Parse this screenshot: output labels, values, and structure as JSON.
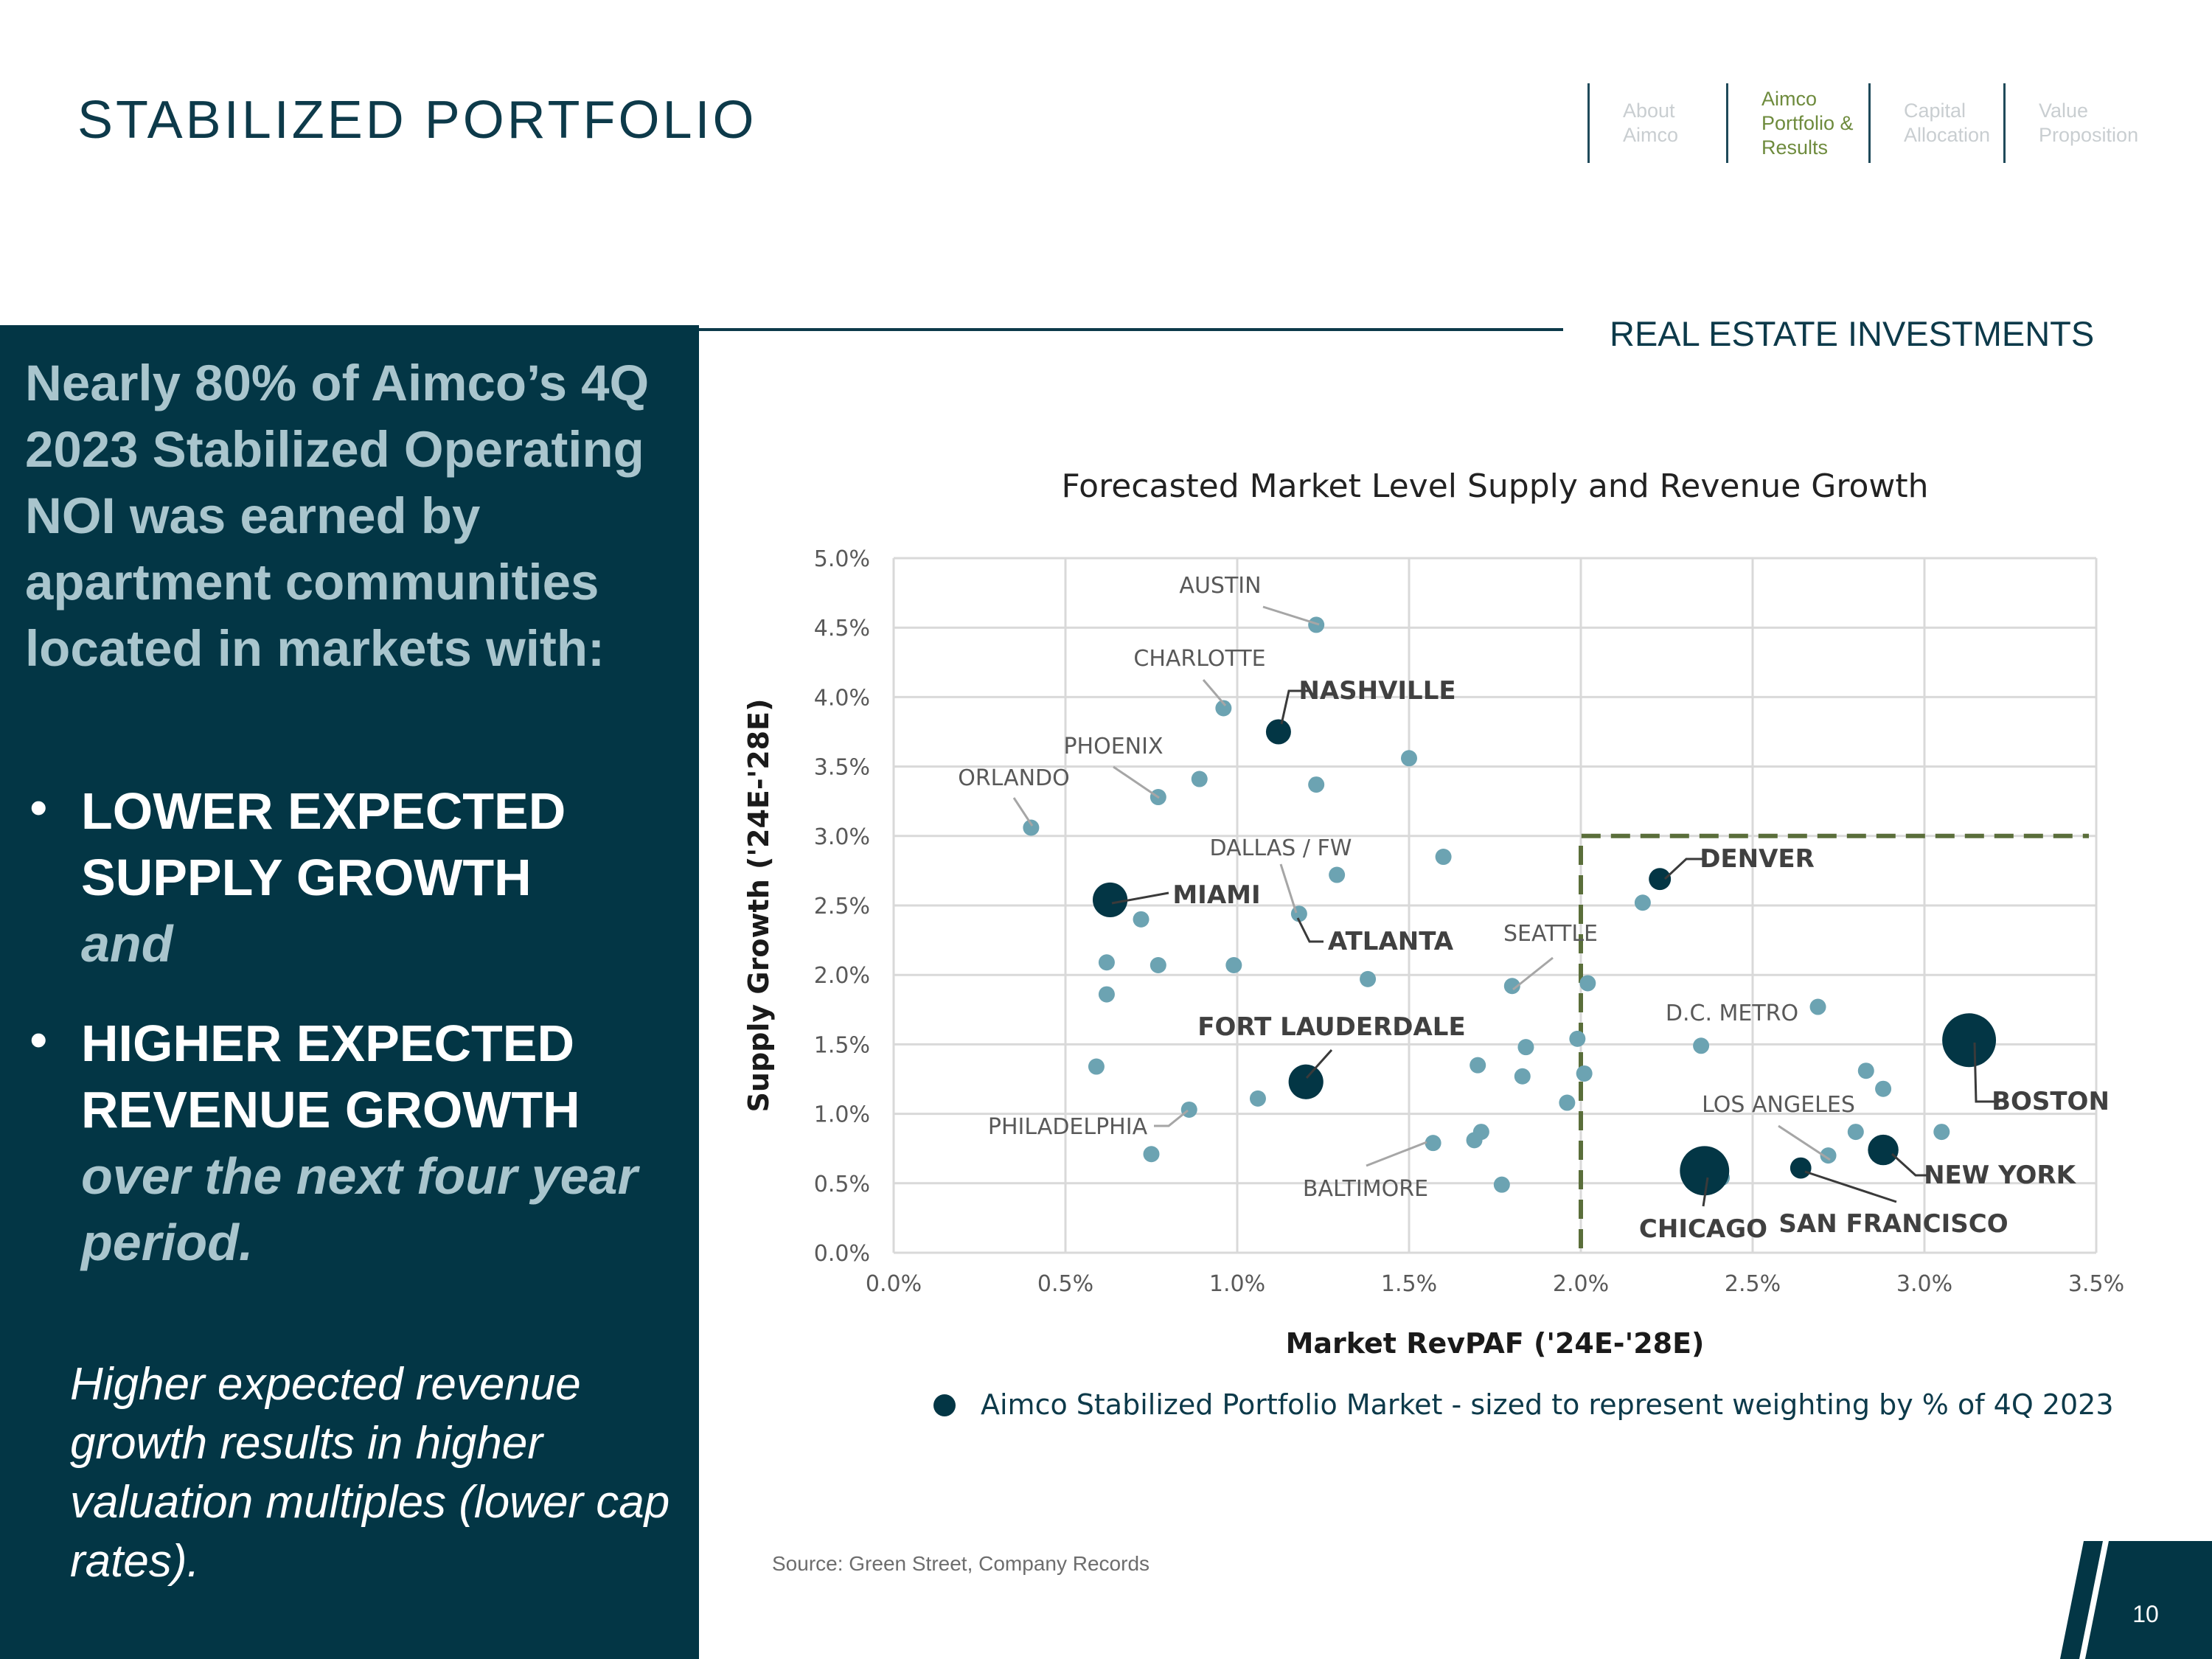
{
  "page": {
    "title": "STABILIZED PORTFOLIO",
    "section_label": "REAL ESTATE INVESTMENTS",
    "page_number": "10",
    "source": "Source: Green Street, Company Records"
  },
  "nav": {
    "about": "About Aimco",
    "portfolio": "Aimco Portfolio & Results",
    "capital": "Capital Allocation",
    "value": "Value Proposition"
  },
  "left_panel": {
    "heading": "Nearly 80% of Aimco’s 4Q 2023 Stabilized Operating NOI was earned by apartment communities located in markets with:",
    "bullet1_bold": "LOWER EXPECTED SUPPLY GROWTH",
    "bullet1_italic": "and",
    "bullet2_bold": "HIGHER EXPECTED REVENUE GROWTH",
    "bullet2_italic": "over the next four year period.",
    "bullet_glyph": "•",
    "note": "Higher expected revenue growth results in higher valuation multiples (lower cap rates)."
  },
  "colors": {
    "navy": "#033645",
    "market_point": "#6ca3b2",
    "aimco_point": "#033645",
    "threshold_line": "#5a6e3a",
    "nav_active": "#6e8b3d"
  },
  "chart_data": {
    "type": "scatter",
    "title": "Forecasted Market Level Supply and Revenue Growth",
    "xlabel": "Market RevPAF ('24E-'28E)",
    "ylabel": "Supply Growth ('24E-'28E)",
    "xlim": [
      0,
      3.5
    ],
    "ylim": [
      0,
      5.0
    ],
    "x_ticks": [
      "0.0%",
      "0.5%",
      "1.0%",
      "1.5%",
      "2.0%",
      "2.5%",
      "3.0%",
      "3.5%"
    ],
    "y_ticks": [
      "0.0%",
      "0.5%",
      "1.0%",
      "1.5%",
      "2.0%",
      "2.5%",
      "3.0%",
      "3.5%",
      "4.0%",
      "4.5%",
      "5.0%"
    ],
    "grid": true,
    "legend_label": "Aimco Stabilized Portfolio Market - sized to represent weighting by % of 4Q 2023",
    "threshold": {
      "x": 2.0,
      "y": 3.0
    },
    "series": [
      {
        "kind": "market",
        "points": [
          {
            "x": 1.23,
            "y": 4.52,
            "label": "AUSTIN"
          },
          {
            "x": 0.96,
            "y": 3.92,
            "label": "CHARLOTTE"
          },
          {
            "x": 0.77,
            "y": 3.28,
            "label": "PHOENIX"
          },
          {
            "x": 0.4,
            "y": 3.06,
            "label": "ORLANDO"
          },
          {
            "x": 1.18,
            "y": 2.44,
            "label": "DALLAS / FW"
          },
          {
            "x": 1.8,
            "y": 1.92,
            "label": "SEATTLE"
          },
          {
            "x": 2.69,
            "y": 1.77,
            "label": "D.C. METRO"
          },
          {
            "x": 2.72,
            "y": 0.7,
            "label": "LOS ANGELES"
          },
          {
            "x": 0.86,
            "y": 1.03,
            "label": "PHILADELPHIA"
          },
          {
            "x": 1.57,
            "y": 0.79,
            "label": "BALTIMORE"
          },
          {
            "x": 0.89,
            "y": 3.41
          },
          {
            "x": 1.23,
            "y": 3.37
          },
          {
            "x": 1.5,
            "y": 3.56
          },
          {
            "x": 1.6,
            "y": 2.85
          },
          {
            "x": 1.29,
            "y": 2.72
          },
          {
            "x": 0.72,
            "y": 2.4
          },
          {
            "x": 0.62,
            "y": 2.09
          },
          {
            "x": 0.77,
            "y": 2.07
          },
          {
            "x": 0.99,
            "y": 2.07
          },
          {
            "x": 1.38,
            "y": 1.97
          },
          {
            "x": 0.62,
            "y": 1.86
          },
          {
            "x": 0.59,
            "y": 1.34
          },
          {
            "x": 1.06,
            "y": 1.11
          },
          {
            "x": 0.75,
            "y": 0.71
          },
          {
            "x": 1.7,
            "y": 1.35
          },
          {
            "x": 1.84,
            "y": 1.48
          },
          {
            "x": 1.83,
            "y": 1.27
          },
          {
            "x": 1.71,
            "y": 0.87
          },
          {
            "x": 1.69,
            "y": 0.81
          },
          {
            "x": 1.77,
            "y": 0.49
          },
          {
            "x": 1.96,
            "y": 1.08
          },
          {
            "x": 1.99,
            "y": 1.54
          },
          {
            "x": 2.01,
            "y": 1.29
          },
          {
            "x": 2.02,
            "y": 1.94
          },
          {
            "x": 2.18,
            "y": 2.52
          },
          {
            "x": 2.35,
            "y": 1.49
          },
          {
            "x": 2.41,
            "y": 0.54
          },
          {
            "x": 2.8,
            "y": 0.87
          },
          {
            "x": 2.83,
            "y": 1.31
          },
          {
            "x": 2.88,
            "y": 1.18
          },
          {
            "x": 3.05,
            "y": 0.87
          }
        ]
      },
      {
        "kind": "aimco",
        "points": [
          {
            "x": 1.12,
            "y": 3.75,
            "label": "NASHVILLE",
            "weight": 1
          },
          {
            "x": 0.63,
            "y": 2.54,
            "label": "MIAMI",
            "weight": 3
          },
          {
            "x": 1.2,
            "y": 1.23,
            "label": "FORT LAUDERDALE",
            "weight": 3
          },
          {
            "x": 2.23,
            "y": 2.69,
            "label": "DENVER",
            "weight": 0.6
          },
          {
            "x": 3.13,
            "y": 1.53,
            "label": "BOSTON",
            "weight": 10
          },
          {
            "x": 2.36,
            "y": 0.59,
            "label": "CHICAGO",
            "weight": 8
          },
          {
            "x": 2.88,
            "y": 0.74,
            "label": "NEW YORK",
            "weight": 2
          },
          {
            "x": 2.64,
            "y": 0.61,
            "label": "SAN FRANCISCO",
            "weight": 0.5
          }
        ]
      }
    ],
    "annotations": [
      {
        "text": "AUSTIN",
        "bold": false
      },
      {
        "text": "CHARLOTTE",
        "bold": false
      },
      {
        "text": "NASHVILLE",
        "bold": true
      },
      {
        "text": "PHOENIX",
        "bold": false
      },
      {
        "text": "ORLANDO",
        "bold": false
      },
      {
        "text": "DALLAS / FW",
        "bold": false
      },
      {
        "text": "MIAMI",
        "bold": true
      },
      {
        "text": "ATLANTA",
        "bold": true
      },
      {
        "text": "SEATTLE",
        "bold": false
      },
      {
        "text": "DENVER",
        "bold": true
      },
      {
        "text": "D.C. METRO",
        "bold": false
      },
      {
        "text": "FORT LAUDERDALE",
        "bold": true
      },
      {
        "text": "LOS ANGELES",
        "bold": false
      },
      {
        "text": "BOSTON",
        "bold": true
      },
      {
        "text": "PHILADELPHIA",
        "bold": false
      },
      {
        "text": "NEW YORK",
        "bold": true
      },
      {
        "text": "BALTIMORE",
        "bold": false
      },
      {
        "text": "CHICAGO",
        "bold": true
      },
      {
        "text": "SAN FRANCISCO",
        "bold": true
      }
    ]
  }
}
